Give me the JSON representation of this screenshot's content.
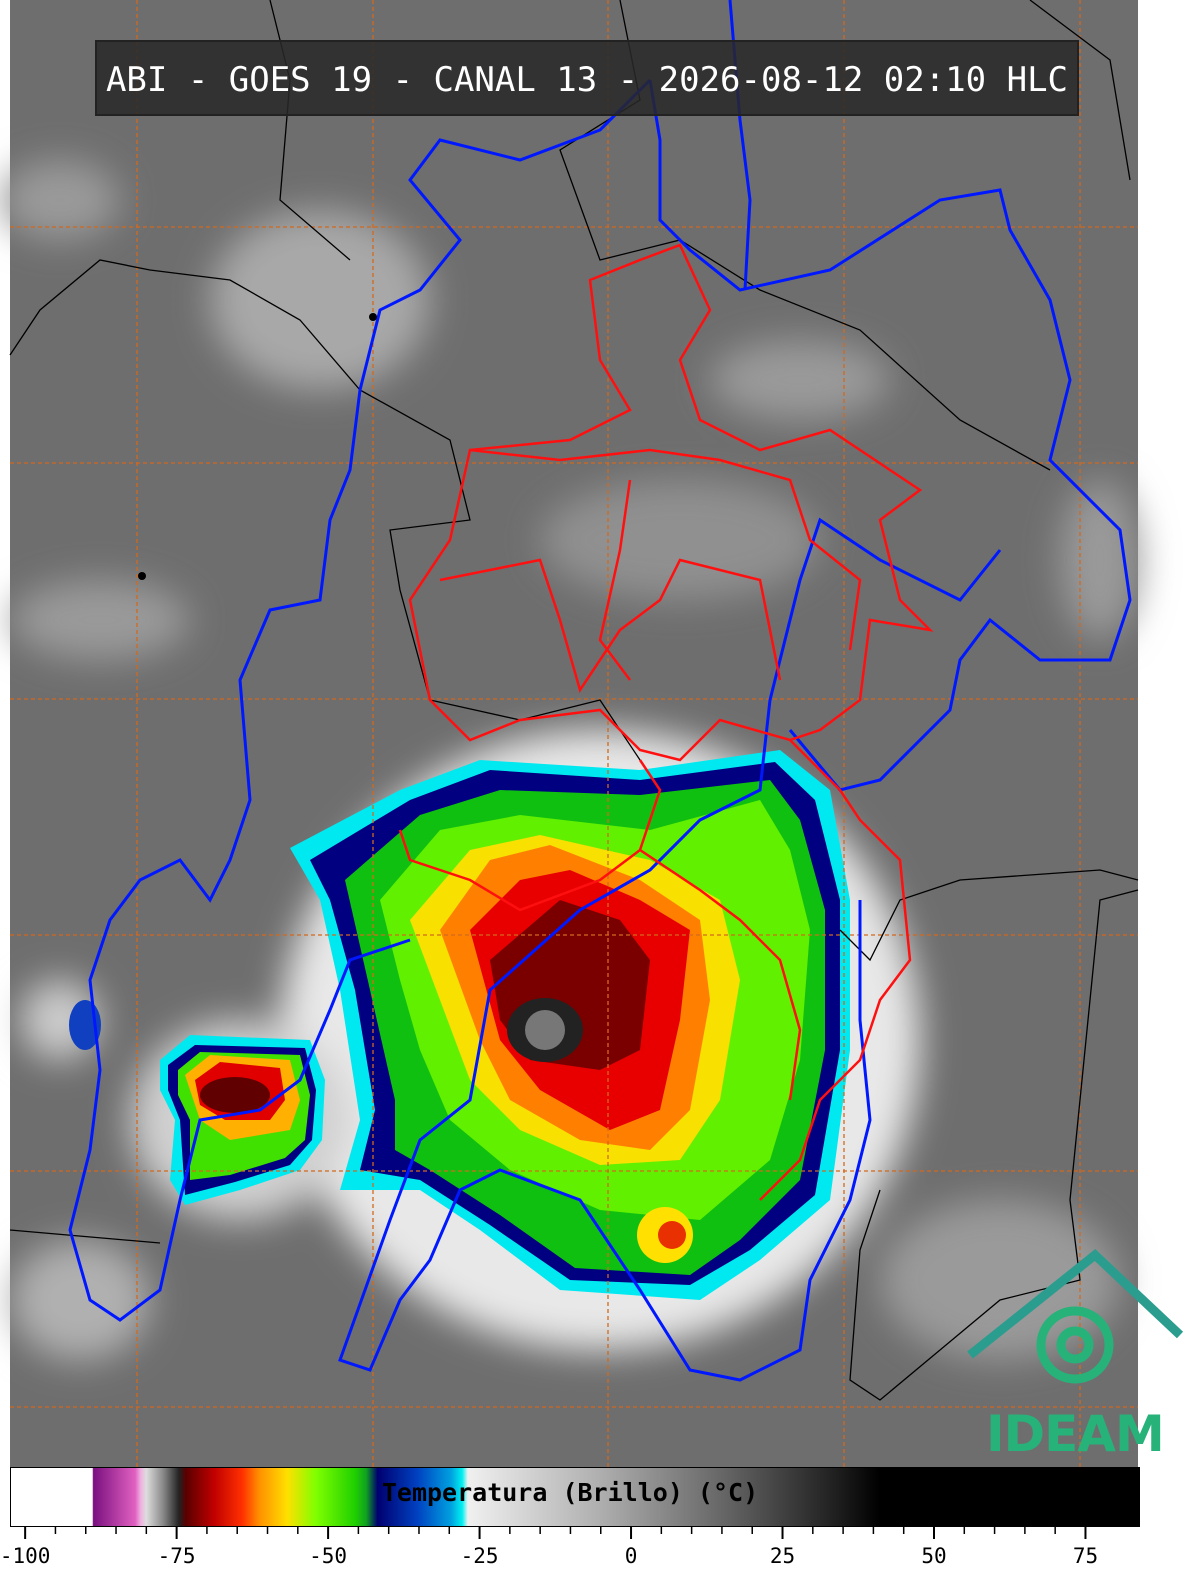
{
  "header": {
    "title": "ABI - GOES 19 - CANAL 13 - 2026-08-12 02:10 HLC"
  },
  "colorbar": {
    "label": "Temperatura (Brillo) (°C)",
    "lim": [
      -102.5,
      84
    ],
    "ticks": [
      -100,
      -75,
      -50,
      -25,
      0,
      25,
      50,
      75
    ]
  },
  "logo": {
    "text": "IDEAM"
  }
}
